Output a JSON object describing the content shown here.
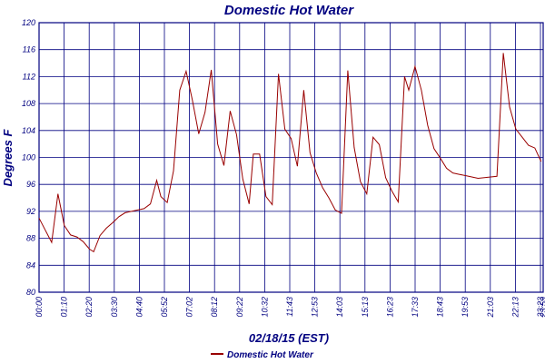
{
  "chart_data": {
    "type": "line",
    "title": "Domestic Hot Water",
    "xlabel": "02/18/15 (EST)",
    "ylabel": "Degrees F",
    "ylim": [
      80,
      120
    ],
    "yticks": [
      "80",
      "84",
      "88",
      "92",
      "96",
      "100",
      "104",
      "108",
      "112",
      "116",
      "120"
    ],
    "xticks": [
      "00:00",
      "01:10",
      "02:20",
      "03:30",
      "04:40",
      "05:52",
      "07:02",
      "08:12",
      "09:22",
      "10:32",
      "11:43",
      "12:53",
      "14:03",
      "15:13",
      "16:23",
      "17:33",
      "18:43",
      "19:53",
      "21:03",
      "22:13",
      "23:23",
      "23:59"
    ],
    "grid": true,
    "legend_position": "bottom-left",
    "colors": {
      "series": "#990000",
      "grid": "#000080",
      "text": "#000080"
    },
    "series": [
      {
        "name": "Domestic Hot Water",
        "x": [
          0,
          0.3,
          0.6,
          0.9,
          1.2,
          1.5,
          1.8,
          2.1,
          2.4,
          2.6,
          2.9,
          3.2,
          3.5,
          3.8,
          4.1,
          4.4,
          4.7,
          5.0,
          5.3,
          5.6,
          5.8,
          6.1,
          6.4,
          6.7,
          7.0,
          7.3,
          7.6,
          7.9,
          8.2,
          8.5,
          8.8,
          9.1,
          9.4,
          9.7,
          10.0,
          10.2,
          10.5,
          10.8,
          11.1,
          11.4,
          11.7,
          12.0,
          12.3,
          12.6,
          12.9,
          13.2,
          13.5,
          13.8,
          14.1,
          14.4,
          14.7,
          15.0,
          15.3,
          15.6,
          15.9,
          16.2,
          16.5,
          16.8,
          17.1,
          17.4,
          17.6,
          17.9,
          18.2,
          18.5,
          18.8,
          19.1,
          19.4,
          19.7,
          20.0,
          20.3,
          20.6,
          20.9,
          21.2,
          21.5,
          21.8,
          22.1,
          22.4,
          22.7,
          23.0,
          23.3,
          23.6,
          23.9
        ],
        "values": [
          91.0,
          89.2,
          87.4,
          94.6,
          89.9,
          88.5,
          88.2,
          87.5,
          86.4,
          86.0,
          88.4,
          89.5,
          90.3,
          91.2,
          91.8,
          92.0,
          92.2,
          92.4,
          93.1,
          96.6,
          94.2,
          93.3,
          98.0,
          110.0,
          112.8,
          108.5,
          103.5,
          106.7,
          113.0,
          102.0,
          98.8,
          106.9,
          103.4,
          96.8,
          93.1,
          100.5,
          100.5,
          94.2,
          93.0,
          112.4,
          104.2,
          102.8,
          98.7,
          110.0,
          100.7,
          97.7,
          95.5,
          94.0,
          92.2,
          91.7,
          112.9,
          101.5,
          96.4,
          94.6,
          103.0,
          101.9,
          97.0,
          95.0,
          93.4,
          112.0,
          110.0,
          113.5,
          110.0,
          104.8,
          101.3,
          99.9,
          98.4,
          97.7,
          97.5,
          97.3,
          97.1,
          96.9,
          97.0,
          97.1,
          97.2,
          115.5,
          107.5,
          104.2,
          103.0,
          101.8,
          101.4,
          99.4
        ]
      }
    ]
  }
}
